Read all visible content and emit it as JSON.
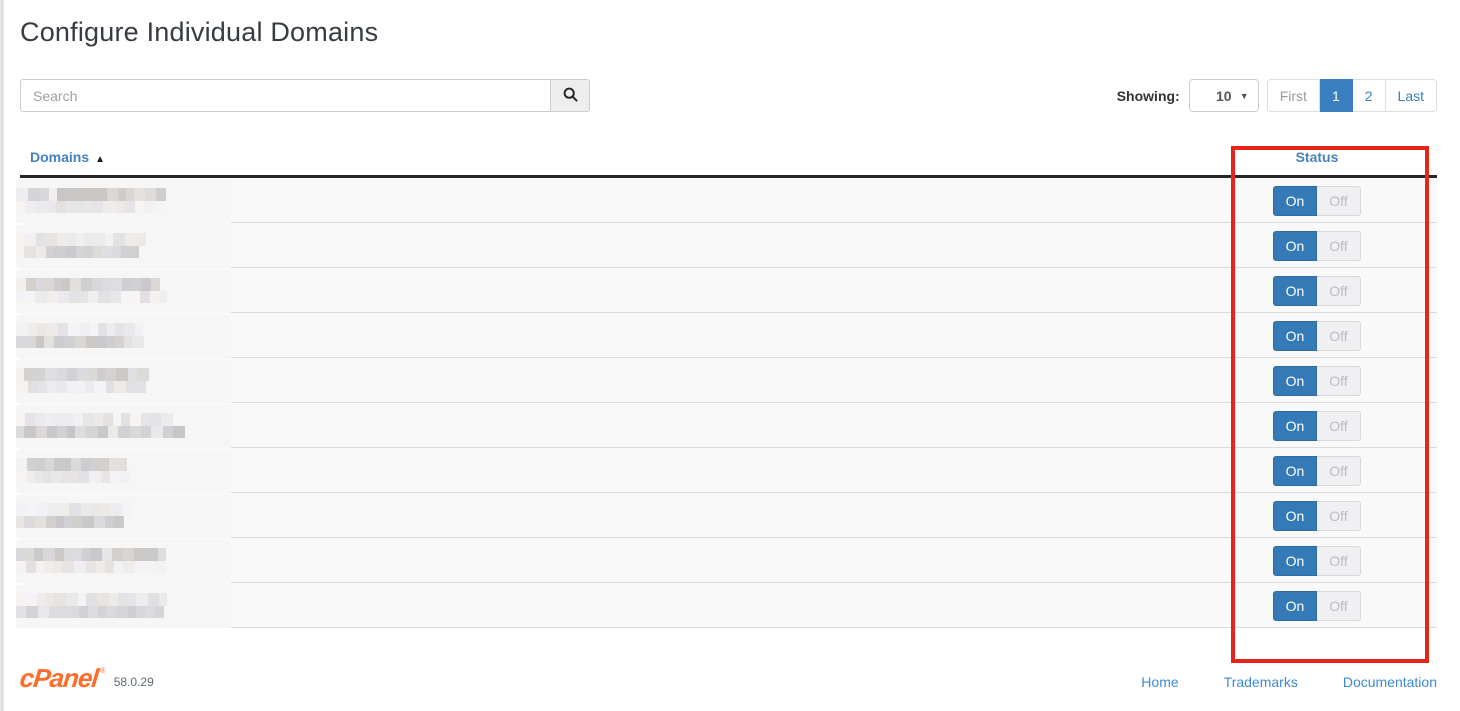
{
  "page": {
    "title": "Configure Individual Domains"
  },
  "search": {
    "placeholder": "Search",
    "value": "",
    "icon": "magnifier-icon"
  },
  "paging": {
    "showing_label": "Showing:",
    "page_size": "10",
    "pages": [
      {
        "label": "First",
        "state": "disabled"
      },
      {
        "label": "1",
        "state": "active"
      },
      {
        "label": "2",
        "state": "normal"
      },
      {
        "label": "Last",
        "state": "normal"
      }
    ]
  },
  "table": {
    "columns": [
      {
        "label": "Domains",
        "sort": "asc"
      },
      {
        "label": "Status",
        "sort": "none"
      }
    ],
    "rows": [
      {
        "domain_redacted": true,
        "blur_width": 144,
        "dark_line": "top",
        "status": "On"
      },
      {
        "domain_redacted": true,
        "blur_width": 123,
        "dark_line": "bottom",
        "status": "On"
      },
      {
        "domain_redacted": true,
        "blur_width": 144,
        "dark_line": "top",
        "status": "On"
      },
      {
        "domain_redacted": true,
        "blur_width": 123,
        "dark_line": "bottom",
        "status": "On"
      },
      {
        "domain_redacted": true,
        "blur_width": 123,
        "dark_line": "top",
        "status": "On"
      },
      {
        "domain_redacted": true,
        "blur_width": 153,
        "dark_line": "bottom",
        "status": "On"
      },
      {
        "domain_redacted": true,
        "blur_width": 114,
        "dark_line": "top",
        "status": "On"
      },
      {
        "domain_redacted": true,
        "blur_width": 102,
        "dark_line": "bottom",
        "status": "On"
      },
      {
        "domain_redacted": true,
        "blur_width": 144,
        "dark_line": "top",
        "status": "On"
      },
      {
        "domain_redacted": true,
        "blur_width": 143,
        "dark_line": "bottom",
        "status": "On"
      }
    ]
  },
  "toggle": {
    "on_label": "On",
    "off_label": "Off"
  },
  "footer": {
    "brand": "cPanel",
    "reg_symbol": "®",
    "version": "58.0.29",
    "links": [
      "Home",
      "Trademarks",
      "Documentation"
    ]
  },
  "annotation": {
    "shape": "rectangle",
    "color": "#e8231a",
    "target": "status-column"
  },
  "colors": {
    "accent_blue": "#3a80c1",
    "toggle_on": "#337ab7",
    "brand_orange": "#ff6c2c",
    "highlight_red": "#e8231a"
  }
}
